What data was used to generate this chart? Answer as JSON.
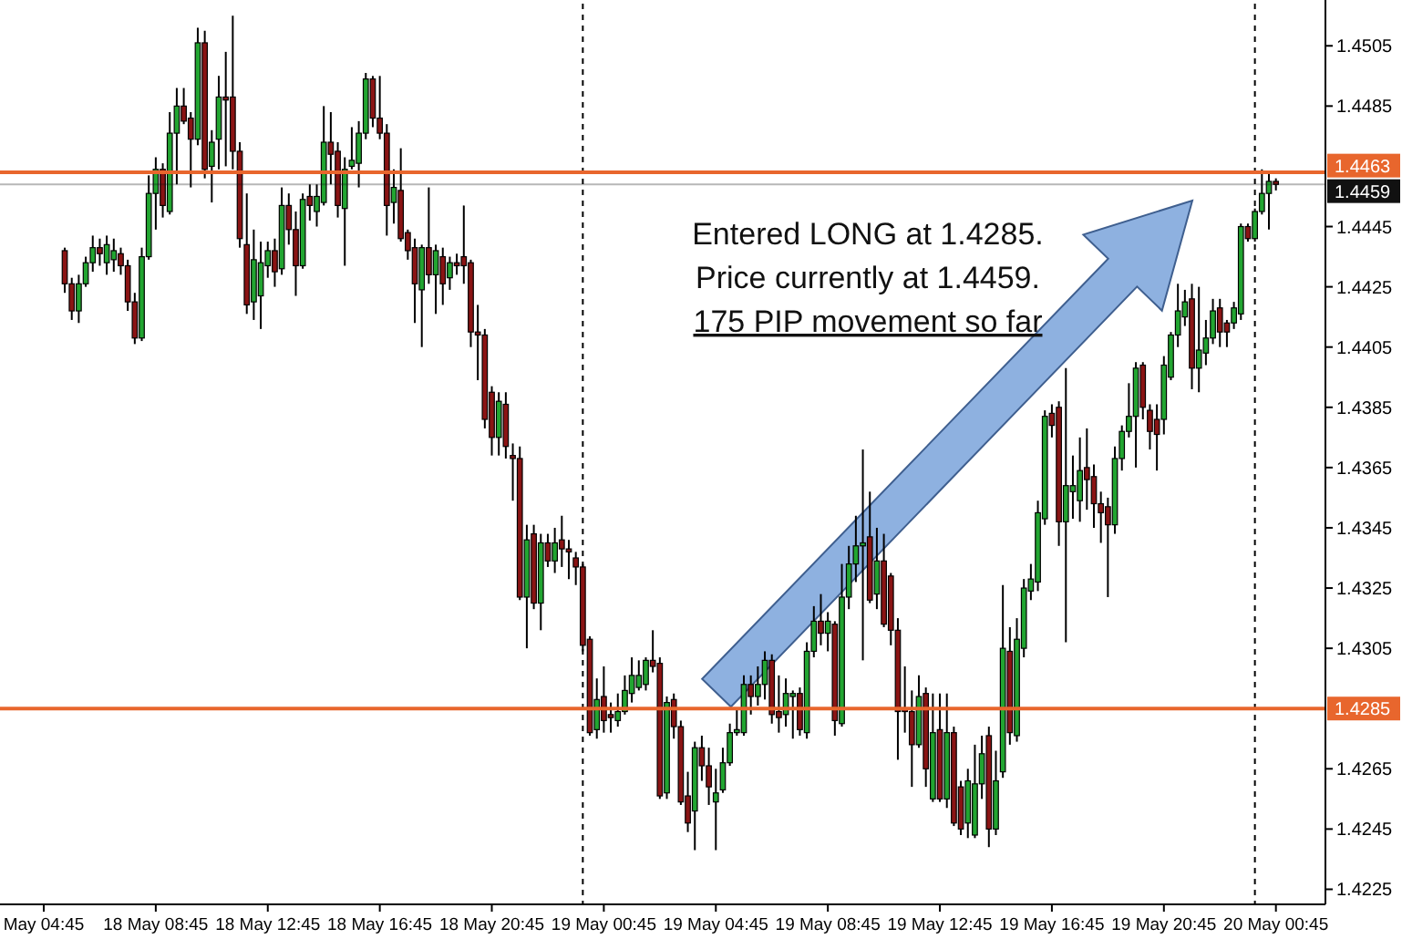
{
  "chart_data": {
    "type": "candlestick",
    "annotations": [
      "Entered LONG at 1.4285.",
      "Price currently at 1.4459.",
      "175 PIP movement so far"
    ],
    "categories": [
      "May 04:45",
      null,
      null,
      null,
      null,
      null,
      null,
      null,
      null,
      null,
      null,
      null,
      null,
      null,
      null,
      null,
      "18 May 08:45",
      null,
      null,
      null,
      null,
      null,
      null,
      null,
      null,
      null,
      null,
      null,
      null,
      null,
      null,
      null,
      "18 May 12:45",
      null,
      null,
      null,
      null,
      null,
      null,
      null,
      null,
      null,
      null,
      null,
      null,
      null,
      null,
      null,
      "18 May 16:45",
      null,
      null,
      null,
      null,
      null,
      null,
      null,
      null,
      null,
      null,
      null,
      null,
      null,
      null,
      null,
      "18 May 20:45",
      null,
      null,
      null,
      null,
      null,
      null,
      null,
      null,
      null,
      null,
      null,
      null,
      null,
      null,
      null,
      "19 May 00:45",
      null,
      null,
      null,
      null,
      null,
      null,
      null,
      null,
      null,
      null,
      null,
      null,
      null,
      null,
      null,
      "19 May 04:45",
      null,
      null,
      null,
      null,
      null,
      null,
      null,
      null,
      null,
      null,
      null,
      null,
      null,
      null,
      null,
      "19 May 08:45",
      null,
      null,
      null,
      null,
      null,
      null,
      null,
      null,
      null,
      null,
      null,
      null,
      null,
      null,
      null,
      "19 May 12:45",
      null,
      null,
      null,
      null,
      null,
      null,
      null,
      null,
      null,
      null,
      null,
      null,
      null,
      null,
      null,
      "19 May 16:45",
      null,
      null,
      null,
      null,
      null,
      null,
      null,
      null,
      null,
      null,
      null,
      null,
      null,
      null,
      null,
      "19 May 20:45",
      null,
      null,
      null,
      null,
      null,
      null,
      null,
      null,
      null,
      null,
      null,
      null,
      null,
      null,
      null,
      "20 May 00:45"
    ],
    "ohlc": [
      null,
      null,
      null,
      [
        1.4437,
        1.4438,
        1.4423,
        1.4426
      ],
      [
        1.4426,
        1.4428,
        1.4414,
        1.4417
      ],
      [
        1.4417,
        1.4429,
        1.4413,
        1.4426
      ],
      [
        1.4426,
        1.4435,
        1.4425,
        1.4433
      ],
      [
        1.4433,
        1.4442,
        1.443,
        1.4438
      ],
      [
        1.4438,
        1.4441,
        1.4432,
        1.4436
      ],
      [
        1.4433,
        1.4442,
        1.4429,
        1.4439
      ],
      [
        1.4434,
        1.4441,
        1.443,
        1.4437
      ],
      [
        1.4436,
        1.4438,
        1.4429,
        1.4432
      ],
      [
        1.4432,
        1.4434,
        1.4417,
        1.442
      ],
      [
        1.442,
        1.4423,
        1.4406,
        1.4408
      ],
      [
        1.4408,
        1.4438,
        1.4407,
        1.4435
      ],
      [
        1.4435,
        1.4462,
        1.4434,
        1.4456
      ],
      [
        1.4456,
        1.4468,
        1.4444,
        1.4464
      ],
      [
        1.4464,
        1.4466,
        1.4448,
        1.4452
      ],
      [
        1.445,
        1.4483,
        1.4449,
        1.4476
      ],
      [
        1.4476,
        1.4491,
        1.4459,
        1.4485
      ],
      [
        1.4485,
        1.4491,
        1.4479,
        1.448
      ],
      [
        1.4481,
        1.4483,
        1.4458,
        1.4474
      ],
      [
        1.4474,
        1.4511,
        1.4472,
        1.4506
      ],
      [
        1.4506,
        1.451,
        1.4461,
        1.4464
      ],
      [
        1.4465,
        1.4477,
        1.4453,
        1.4473
      ],
      [
        1.4474,
        1.4495,
        1.4464,
        1.4488
      ],
      [
        1.4488,
        1.4503,
        1.4465,
        1.4487
      ],
      [
        1.4488,
        1.4515,
        1.4464,
        1.447
      ],
      [
        1.447,
        1.4473,
        1.4438,
        1.4441
      ],
      [
        1.4439,
        1.4456,
        1.4416,
        1.4419
      ],
      [
        1.442,
        1.4444,
        1.4414,
        1.4434
      ],
      [
        1.4422,
        1.444,
        1.4411,
        1.4433
      ],
      [
        1.4432,
        1.444,
        1.4428,
        1.4437
      ],
      [
        1.4437,
        1.4441,
        1.4425,
        1.443
      ],
      [
        1.4431,
        1.4458,
        1.4429,
        1.4452
      ],
      [
        1.4452,
        1.4456,
        1.4439,
        1.4444
      ],
      [
        1.4444,
        1.445,
        1.4422,
        1.4432
      ],
      [
        1.4432,
        1.4456,
        1.4431,
        1.4454
      ],
      [
        1.4455,
        1.4459,
        1.4447,
        1.4452
      ],
      [
        1.445,
        1.4459,
        1.4445,
        1.4455
      ],
      [
        1.4453,
        1.4485,
        1.4452,
        1.4473
      ],
      [
        1.4473,
        1.4483,
        1.4459,
        1.4469
      ],
      [
        1.447,
        1.4473,
        1.4448,
        1.4452
      ],
      [
        1.4451,
        1.4468,
        1.4432,
        1.4464
      ],
      [
        1.4465,
        1.4478,
        1.4464,
        1.4467
      ],
      [
        1.4466,
        1.448,
        1.4458,
        1.4476
      ],
      [
        1.4476,
        1.4496,
        1.4474,
        1.4494
      ],
      [
        1.4494,
        1.4495,
        1.4478,
        1.4481
      ],
      [
        1.4481,
        1.4495,
        1.4474,
        1.4476
      ],
      [
        1.4476,
        1.4479,
        1.4442,
        1.4452
      ],
      [
        1.4453,
        1.4464,
        1.4446,
        1.4458
      ],
      [
        1.4457,
        1.4471,
        1.444,
        1.4441
      ],
      [
        1.4443,
        1.4444,
        1.4434,
        1.4437
      ],
      [
        1.4438,
        1.4441,
        1.4413,
        1.4426
      ],
      [
        1.4424,
        1.4439,
        1.4405,
        1.4438
      ],
      [
        1.4438,
        1.4458,
        1.4426,
        1.4429
      ],
      [
        1.4429,
        1.4439,
        1.4416,
        1.4437
      ],
      [
        1.4435,
        1.4438,
        1.4419,
        1.4426
      ],
      [
        1.4428,
        1.4435,
        1.4424,
        1.4433
      ],
      [
        1.4433,
        1.4436,
        1.4429,
        1.4432
      ],
      [
        1.4435,
        1.4452,
        1.4426,
        1.4432
      ],
      [
        1.4433,
        1.4434,
        1.4405,
        1.441
      ],
      [
        1.441,
        1.4419,
        1.4394,
        1.4409
      ],
      [
        1.4409,
        1.4411,
        1.4378,
        1.4381
      ],
      [
        1.439,
        1.4392,
        1.4369,
        1.4375
      ],
      [
        1.4375,
        1.439,
        1.4369,
        1.4387
      ],
      [
        1.4386,
        1.439,
        1.4368,
        1.4372
      ],
      [
        1.4369,
        1.4373,
        1.4354,
        1.4368
      ],
      [
        1.4368,
        1.4372,
        1.4321,
        1.4322
      ],
      [
        1.4322,
        1.4346,
        1.4305,
        1.4341
      ],
      [
        1.4343,
        1.4346,
        1.4318,
        1.432
      ],
      [
        1.432,
        1.4343,
        1.4311,
        1.434
      ],
      [
        1.434,
        1.4343,
        1.4332,
        1.4334
      ],
      [
        1.4334,
        1.4345,
        1.433,
        1.434
      ],
      [
        1.4341,
        1.4349,
        1.4332,
        1.4338
      ],
      [
        1.4338,
        1.4341,
        1.4328,
        1.4337
      ],
      [
        1.4335,
        1.4337,
        1.4326,
        1.4332
      ],
      [
        1.4332,
        1.4333,
        1.4304,
        1.4306
      ],
      [
        1.4308,
        1.4309,
        1.4276,
        1.4277
      ],
      [
        1.4278,
        1.4295,
        1.4275,
        1.4288
      ],
      [
        1.4289,
        1.4299,
        1.4277,
        1.4281
      ],
      [
        1.4283,
        1.4287,
        1.4277,
        1.4282
      ],
      [
        1.4281,
        1.429,
        1.4279,
        1.4284
      ],
      [
        1.4284,
        1.4296,
        1.4283,
        1.4291
      ],
      [
        1.429,
        1.4302,
        1.4287,
        1.4296
      ],
      [
        1.4292,
        1.4301,
        1.4291,
        1.4296
      ],
      [
        1.4293,
        1.4302,
        1.4291,
        1.4301
      ],
      [
        1.4301,
        1.4311,
        1.4297,
        1.4299
      ],
      [
        1.43,
        1.4302,
        1.4255,
        1.4256
      ],
      [
        1.4257,
        1.4289,
        1.4255,
        1.4287
      ],
      [
        1.4288,
        1.429,
        1.4275,
        1.4279
      ],
      [
        1.4279,
        1.4281,
        1.4253,
        1.4254
      ],
      [
        1.4256,
        1.4264,
        1.4244,
        1.4247
      ],
      [
        1.4251,
        1.4274,
        1.4238,
        1.4272
      ],
      [
        1.4272,
        1.4276,
        1.4261,
        1.4266
      ],
      [
        1.4266,
        1.4272,
        1.4253,
        1.4259
      ],
      [
        1.4254,
        1.4265,
        1.4238,
        1.4257
      ],
      [
        1.4258,
        1.4272,
        1.4257,
        1.4267
      ],
      [
        1.4267,
        1.428,
        1.4266,
        1.4277
      ],
      [
        1.4277,
        1.4285,
        1.4276,
        1.4278
      ],
      [
        1.4277,
        1.4296,
        1.4276,
        1.4293
      ],
      [
        1.4293,
        1.4296,
        1.4283,
        1.4289
      ],
      [
        1.4289,
        1.4299,
        1.4286,
        1.4293
      ],
      [
        1.4293,
        1.4304,
        1.4288,
        1.4301
      ],
      [
        1.4301,
        1.4303,
        1.428,
        1.4283
      ],
      [
        1.4284,
        1.4296,
        1.4277,
        1.4282
      ],
      [
        1.4283,
        1.4295,
        1.4279,
        1.429
      ],
      [
        1.4289,
        1.4291,
        1.4275,
        1.429
      ],
      [
        1.429,
        1.4292,
        1.4276,
        1.4278
      ],
      [
        1.4277,
        1.4307,
        1.4275,
        1.4304
      ],
      [
        1.4304,
        1.4319,
        1.4302,
        1.4314
      ],
      [
        1.4314,
        1.4323,
        1.4306,
        1.431
      ],
      [
        1.431,
        1.4317,
        1.4304,
        1.4314
      ],
      [
        1.4313,
        1.4314,
        1.4276,
        1.4281
      ],
      [
        1.428,
        1.4333,
        1.4279,
        1.4322
      ],
      [
        1.4322,
        1.4339,
        1.4318,
        1.4333
      ],
      [
        1.4333,
        1.4349,
        1.4327,
        1.4339
      ],
      [
        1.4339,
        1.4371,
        1.4301,
        1.434
      ],
      [
        1.4342,
        1.4357,
        1.432,
        1.4321
      ],
      [
        1.4323,
        1.4345,
        1.4318,
        1.4334
      ],
      [
        1.4334,
        1.4343,
        1.4312,
        1.4313
      ],
      [
        1.4329,
        1.433,
        1.4306,
        1.4311
      ],
      [
        1.4311,
        1.4315,
        1.4268,
        1.4284
      ],
      [
        1.4285,
        1.4299,
        1.4277,
        1.4284
      ],
      [
        1.4284,
        1.4291,
        1.4259,
        1.4273
      ],
      [
        1.4273,
        1.4296,
        1.4272,
        1.4289
      ],
      [
        1.429,
        1.4292,
        1.4259,
        1.4265
      ],
      [
        1.4255,
        1.429,
        1.4254,
        1.4277
      ],
      [
        1.4278,
        1.429,
        1.4254,
        1.4255
      ],
      [
        1.4255,
        1.429,
        1.4252,
        1.4277
      ],
      [
        1.4277,
        1.4279,
        1.4246,
        1.4247
      ],
      [
        1.4259,
        1.4261,
        1.4243,
        1.4245
      ],
      [
        1.4247,
        1.4265,
        1.4242,
        1.4261
      ],
      [
        1.4243,
        1.4273,
        1.4242,
        1.426
      ],
      [
        1.426,
        1.4276,
        1.4255,
        1.427
      ],
      [
        1.4276,
        1.4279,
        1.4239,
        1.4245
      ],
      [
        1.4245,
        1.4271,
        1.4243,
        1.4261
      ],
      [
        1.4264,
        1.4326,
        1.4262,
        1.4305
      ],
      [
        1.4304,
        1.4312,
        1.4273,
        1.4277
      ],
      [
        1.4276,
        1.4315,
        1.4274,
        1.4308
      ],
      [
        1.4305,
        1.4328,
        1.4302,
        1.4325
      ],
      [
        1.4324,
        1.4333,
        1.4321,
        1.4328
      ],
      [
        1.4327,
        1.4354,
        1.4324,
        1.435
      ],
      [
        1.4348,
        1.4384,
        1.4346,
        1.4382
      ],
      [
        1.4383,
        1.4386,
        1.4375,
        1.4379
      ],
      [
        1.4385,
        1.4387,
        1.4339,
        1.4347
      ],
      [
        1.4347,
        1.4398,
        1.4307,
        1.4359
      ],
      [
        1.4357,
        1.4369,
        1.4348,
        1.4359
      ],
      [
        1.4354,
        1.4375,
        1.4347,
        1.4364
      ],
      [
        1.4365,
        1.4378,
        1.4351,
        1.4361
      ],
      [
        1.4362,
        1.4366,
        1.4345,
        1.4353
      ],
      [
        1.4353,
        1.4357,
        1.434,
        1.435
      ],
      [
        1.4352,
        1.4355,
        1.4322,
        1.4346
      ],
      [
        1.4346,
        1.4372,
        1.4343,
        1.4368
      ],
      [
        1.4368,
        1.4379,
        1.4364,
        1.4377
      ],
      [
        1.4377,
        1.4393,
        1.4375,
        1.4382
      ],
      [
        1.4382,
        1.44,
        1.4365,
        1.4398
      ],
      [
        1.4399,
        1.44,
        1.4381,
        1.4385
      ],
      [
        1.4384,
        1.4386,
        1.4371,
        1.4377
      ],
      [
        1.4381,
        1.4386,
        1.4364,
        1.4376
      ],
      [
        1.4381,
        1.4402,
        1.4376,
        1.4399
      ],
      [
        1.4395,
        1.441,
        1.4394,
        1.4409
      ],
      [
        1.4409,
        1.4426,
        1.4405,
        1.4417
      ],
      [
        1.4415,
        1.4424,
        1.4412,
        1.442
      ],
      [
        1.4421,
        1.4426,
        1.4391,
        1.4398
      ],
      [
        1.4398,
        1.4425,
        1.439,
        1.4404
      ],
      [
        1.4403,
        1.4414,
        1.4399,
        1.4408
      ],
      [
        1.4408,
        1.4421,
        1.4406,
        1.4417
      ],
      [
        1.4418,
        1.4421,
        1.4405,
        1.441
      ],
      [
        1.4413,
        1.4414,
        1.4405,
        1.441
      ],
      [
        1.4413,
        1.442,
        1.4411,
        1.4418
      ],
      [
        1.4416,
        1.4446,
        1.4414,
        1.4445
      ],
      [
        1.4445,
        1.4446,
        1.444,
        1.4441
      ],
      [
        1.4441,
        1.4451,
        1.444,
        1.445
      ],
      [
        1.445,
        1.4464,
        1.4449,
        1.4456
      ],
      [
        1.4456,
        1.4463,
        1.4444,
        1.446
      ],
      [
        1.446,
        1.4461,
        1.4457,
        1.4459
      ]
    ],
    "ylim": [
      1.422,
      1.4519
    ],
    "yticks": [
      1.4225,
      1.4245,
      1.4265,
      1.4305,
      1.4325,
      1.4345,
      1.4365,
      1.4385,
      1.4405,
      1.4425,
      1.4445,
      1.4485,
      1.4505
    ],
    "ref_lines": [
      {
        "axis": "y",
        "value": 1.4285,
        "label": "1.4285",
        "color": "#e8662d"
      },
      {
        "axis": "y",
        "value": 1.4463,
        "label": "1.4463",
        "color": "#e8662d"
      },
      {
        "axis": "y",
        "value": 1.4459,
        "label": "1.4459",
        "color": "#111111"
      }
    ]
  }
}
